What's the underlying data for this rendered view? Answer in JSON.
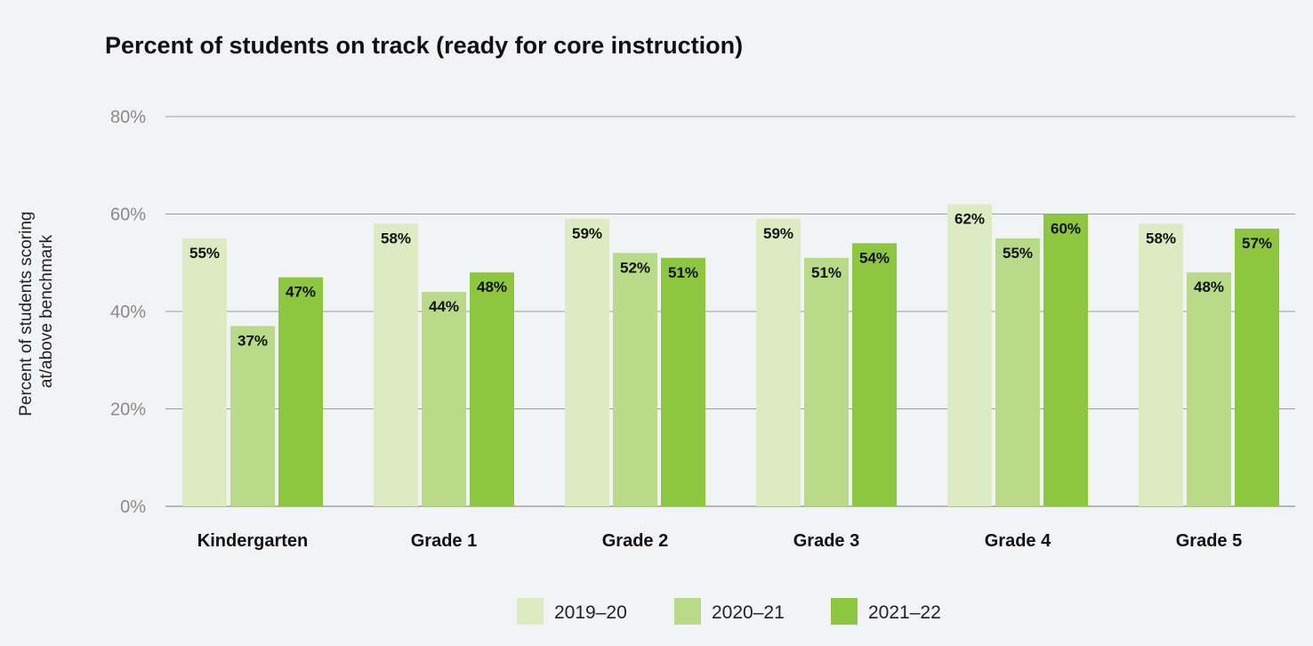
{
  "chart_data": {
    "type": "bar",
    "title": "Percent of students on track (ready for core instruction)",
    "xlabel": "",
    "ylabel": "Percent of students scoring at/above benchmark",
    "ylabel_lines": [
      "Percent of students scoring",
      "at/above benchmark"
    ],
    "ylim": [
      0,
      80
    ],
    "yticks": [
      0,
      20,
      40,
      60,
      80
    ],
    "ytick_labels": [
      "0%",
      "20%",
      "40%",
      "60%",
      "80%"
    ],
    "grid": true,
    "legend_position": "bottom-center",
    "value_suffix": "%",
    "categories": [
      "Kindergarten",
      "Grade 1",
      "Grade 2",
      "Grade 3",
      "Grade 4",
      "Grade 5"
    ],
    "series": [
      {
        "name": "2019–20",
        "color": "#dcebc1",
        "values": [
          55,
          58,
          59,
          59,
          62,
          58
        ]
      },
      {
        "name": "2020–21",
        "color": "#b9da88",
        "values": [
          37,
          44,
          52,
          51,
          55,
          48
        ]
      },
      {
        "name": "2021–22",
        "color": "#8dc63f",
        "values": [
          47,
          48,
          51,
          54,
          60,
          57
        ]
      }
    ]
  }
}
